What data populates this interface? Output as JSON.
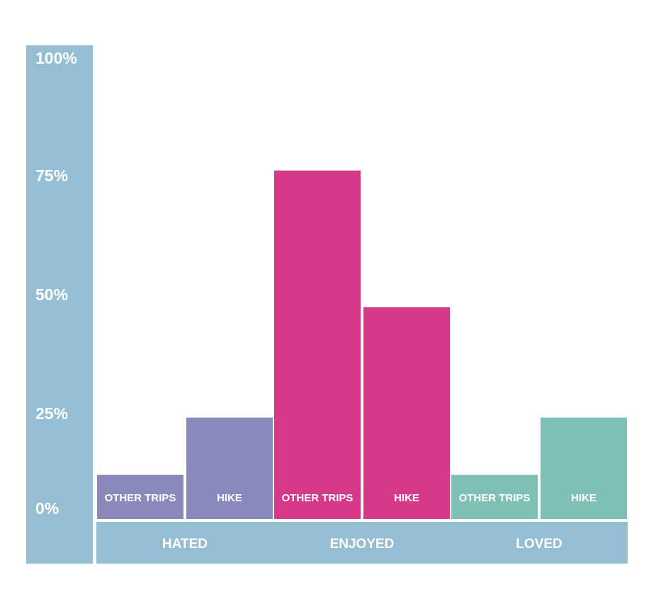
{
  "chart_data": {
    "type": "bar",
    "title": "",
    "xlabel": "",
    "ylabel": "",
    "ylim": [
      0,
      100
    ],
    "y_ticks": [
      "0%",
      "25%",
      "50%",
      "75%",
      "100%"
    ],
    "y_tick_values": [
      0,
      25,
      50,
      75,
      100
    ],
    "groups": [
      {
        "name": "HATED",
        "color": "#8b88bb",
        "bars": [
          {
            "label": "OTHER TRIPS",
            "value": 10
          },
          {
            "label": "HIKE",
            "value": 23
          }
        ]
      },
      {
        "name": "ENJOYED",
        "color": "#d6398a",
        "bars": [
          {
            "label": "OTHER TRIPS",
            "value": 79
          },
          {
            "label": "HIKE",
            "value": 48
          }
        ]
      },
      {
        "name": "LOVED",
        "color": "#7fc1b4",
        "bars": [
          {
            "label": "OTHER TRIPS",
            "value": 10
          },
          {
            "label": "HIKE",
            "value": 23
          }
        ]
      }
    ],
    "axis_color": "#96bed3",
    "grid": false
  }
}
